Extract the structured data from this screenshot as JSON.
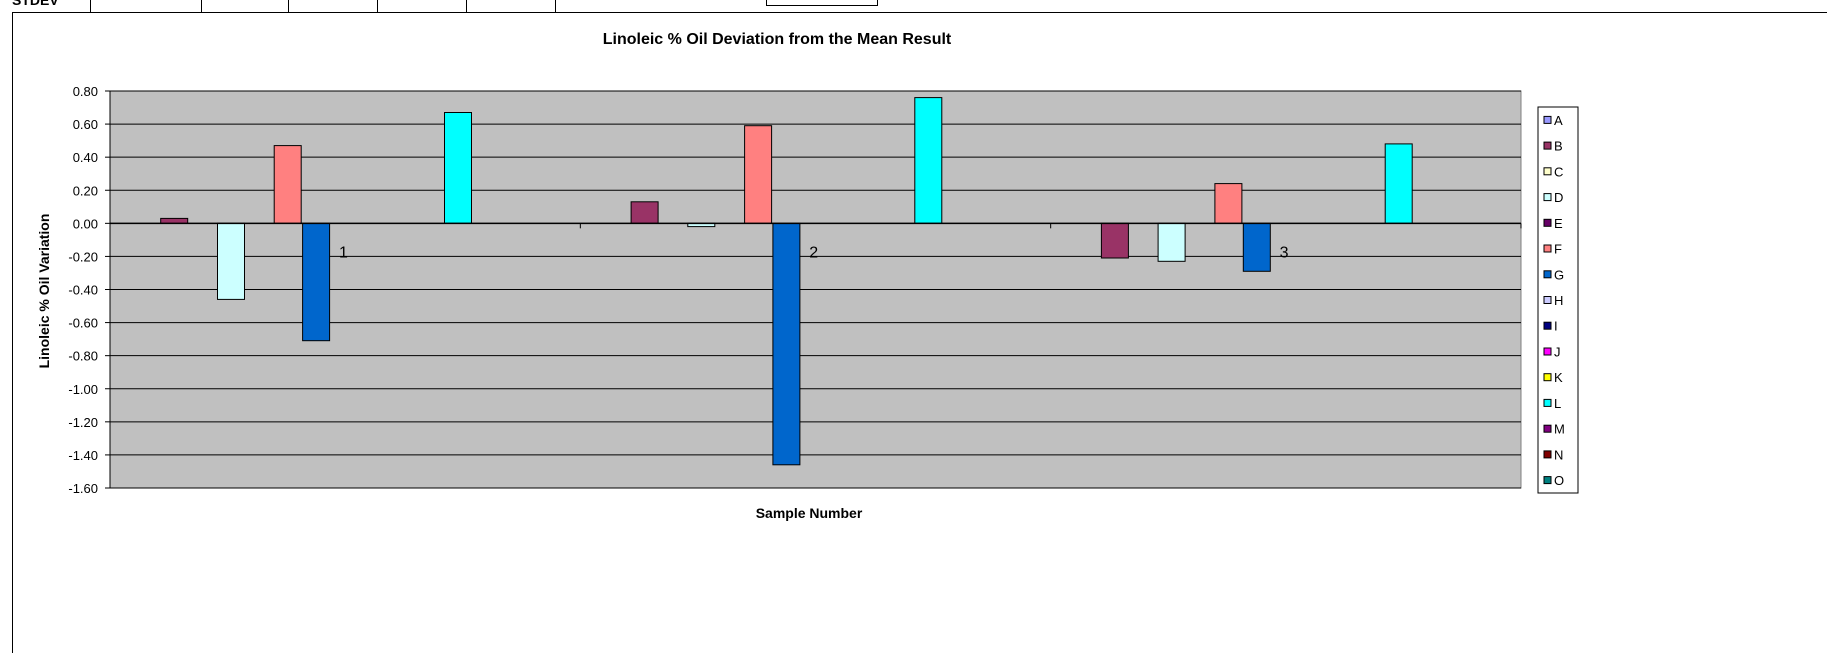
{
  "header_fragment": {
    "text": "STDEV"
  },
  "chart_data": {
    "type": "bar",
    "title": "Linoleic % Oil Deviation from the Mean Result",
    "xlabel": "Sample Number",
    "ylabel": "Linoleic % Oil Variation",
    "categories": [
      "1",
      "2",
      "3"
    ],
    "ylim": [
      -1.6,
      0.8
    ],
    "ytick_step": 0.2,
    "ytick_labels": [
      "0.80",
      "0.60",
      "0.40",
      "0.20",
      "0.00",
      "-0.20",
      "-0.40",
      "-0.60",
      "-0.80",
      "-1.00",
      "-1.20",
      "-1.40",
      "-1.60"
    ],
    "grid": true,
    "legend_position": "right",
    "series": [
      {
        "name": "A",
        "color": "#9999FF",
        "values": [
          null,
          null,
          null
        ]
      },
      {
        "name": "B",
        "color": "#993366",
        "values": [
          0.03,
          0.13,
          -0.21
        ]
      },
      {
        "name": "C",
        "color": "#FFFFCC",
        "values": [
          null,
          null,
          null
        ]
      },
      {
        "name": "D",
        "color": "#CCFFFF",
        "values": [
          -0.46,
          -0.02,
          -0.23
        ]
      },
      {
        "name": "E",
        "color": "#660066",
        "values": [
          null,
          null,
          null
        ]
      },
      {
        "name": "F",
        "color": "#FF8080",
        "values": [
          0.47,
          0.59,
          0.24
        ]
      },
      {
        "name": "G",
        "color": "#0066CC",
        "values": [
          -0.71,
          -1.46,
          -0.29
        ]
      },
      {
        "name": "H",
        "color": "#CCCCFF",
        "values": [
          null,
          null,
          null
        ]
      },
      {
        "name": "I",
        "color": "#000080",
        "values": [
          null,
          null,
          null
        ]
      },
      {
        "name": "J",
        "color": "#FF00FF",
        "values": [
          null,
          null,
          null
        ]
      },
      {
        "name": "K",
        "color": "#FFFF00",
        "values": [
          null,
          null,
          null
        ]
      },
      {
        "name": "L",
        "color": "#00FFFF",
        "values": [
          0.67,
          0.76,
          0.48
        ]
      },
      {
        "name": "M",
        "color": "#800080",
        "values": [
          null,
          null,
          null
        ]
      },
      {
        "name": "N",
        "color": "#800000",
        "values": [
          null,
          null,
          null
        ]
      },
      {
        "name": "O",
        "color": "#008080",
        "values": [
          null,
          null,
          null
        ]
      }
    ],
    "colors": {
      "plot_background": "#C0C0C0",
      "gridline": "#000000"
    }
  }
}
